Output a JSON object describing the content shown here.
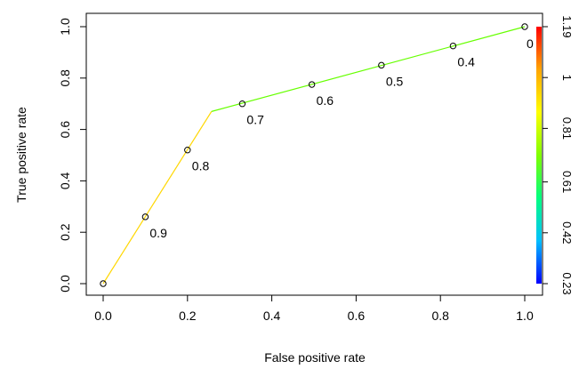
{
  "chart_data": {
    "type": "line",
    "xlabel": "False positive rate",
    "ylabel": "True positive rate",
    "xlim": [
      0,
      1
    ],
    "ylim": [
      0,
      1
    ],
    "x_ticks": [
      "0.0",
      "0.2",
      "0.4",
      "0.6",
      "0.8",
      "1.0"
    ],
    "y_ticks": [
      "0.0",
      "0.2",
      "0.4",
      "0.6",
      "0.8",
      "1.0"
    ],
    "curve": [
      {
        "x": 0.0,
        "y": 0.0,
        "color": "#ffd700"
      },
      {
        "x": 0.257,
        "y": 0.67,
        "color": "#ffd700"
      },
      {
        "x": 1.0,
        "y": 1.0,
        "color": "#66ff00"
      }
    ],
    "points": [
      {
        "x": 0.0,
        "y": 0.0,
        "label": ""
      },
      {
        "x": 0.1,
        "y": 0.26,
        "label": "0.9"
      },
      {
        "x": 0.2,
        "y": 0.52,
        "label": "0.8"
      },
      {
        "x": 0.33,
        "y": 0.7,
        "label": "0.7"
      },
      {
        "x": 0.495,
        "y": 0.775,
        "label": "0.6"
      },
      {
        "x": 0.66,
        "y": 0.85,
        "label": "0.5"
      },
      {
        "x": 0.83,
        "y": 0.925,
        "label": "0.4"
      },
      {
        "x": 1.0,
        "y": 1.0,
        "label": "0"
      }
    ],
    "colorbar": {
      "ticks": [
        "0.23",
        "0.42",
        "0.61",
        "0.81",
        "1",
        "1.19"
      ],
      "min": 0.23,
      "max": 1.19,
      "colors": [
        "#0000ff",
        "#00bfff",
        "#00ff80",
        "#80ff00",
        "#ffff00",
        "#ffa500",
        "#ff0000"
      ]
    }
  }
}
